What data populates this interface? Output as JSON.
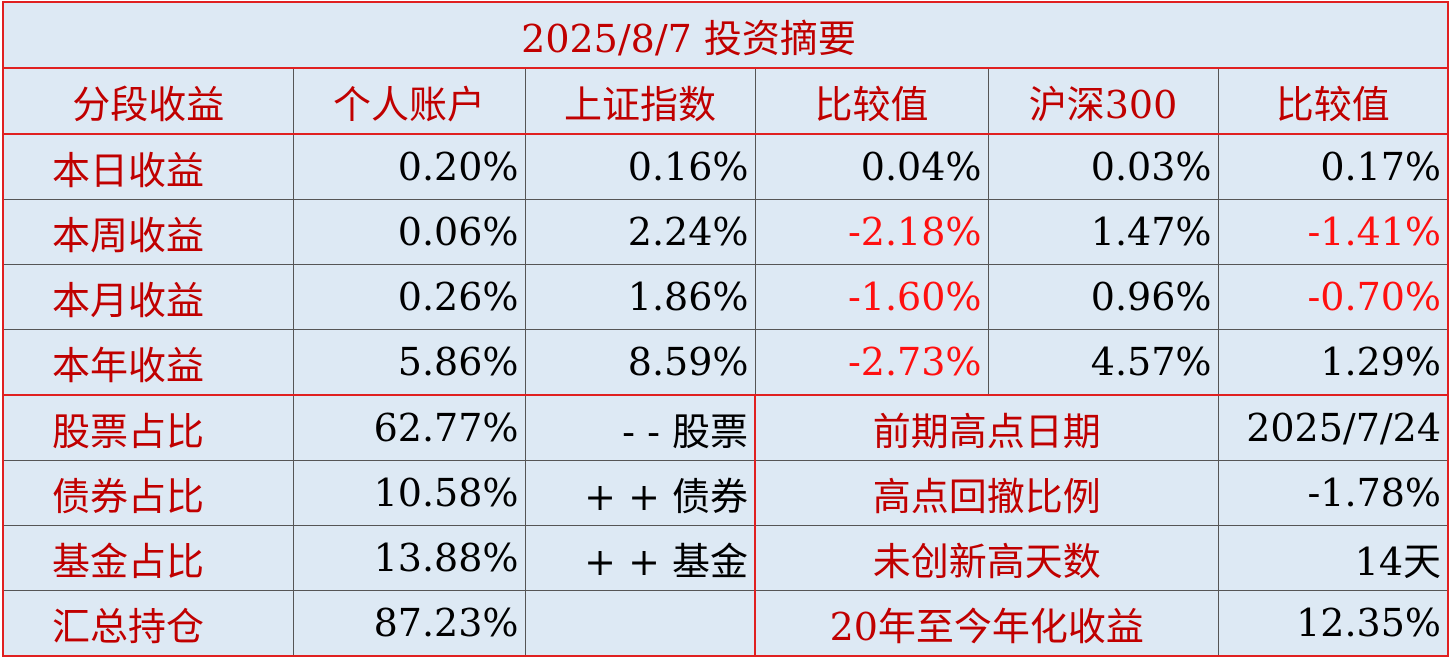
{
  "title": "2025/8/7 投资摘要",
  "header": [
    "分段收益",
    "个人账户",
    "上证指数",
    "比较值",
    "沪深300",
    "比较值"
  ],
  "rows": [
    [
      "本日收益",
      "0.20%",
      "0.16%",
      "0.04%",
      "0.03%",
      "0.17%"
    ],
    [
      "本周收益",
      "0.06%",
      "2.24%",
      "-2.18%",
      "1.47%",
      "-1.41%"
    ],
    [
      "本月收益",
      "0.26%",
      "1.86%",
      "-1.60%",
      "0.96%",
      "-0.70%"
    ],
    [
      "本年收益",
      "5.86%",
      "8.59%",
      "-2.73%",
      "4.57%",
      "1.29%"
    ]
  ],
  "summary": [
    [
      "股票占比",
      "62.77%",
      "- - 股票",
      "前期高点日期",
      "2025/7/24"
    ],
    [
      "债券占比",
      "10.58%",
      "+ + 债券",
      "高点回撤比例",
      "-1.78%"
    ],
    [
      "基金占比",
      "13.88%",
      "+ + 基金",
      "未创新高天数",
      "14天"
    ],
    [
      "汇总持仓",
      "87.23%",
      "",
      "20年至今年化收益",
      "12.35%"
    ]
  ]
}
